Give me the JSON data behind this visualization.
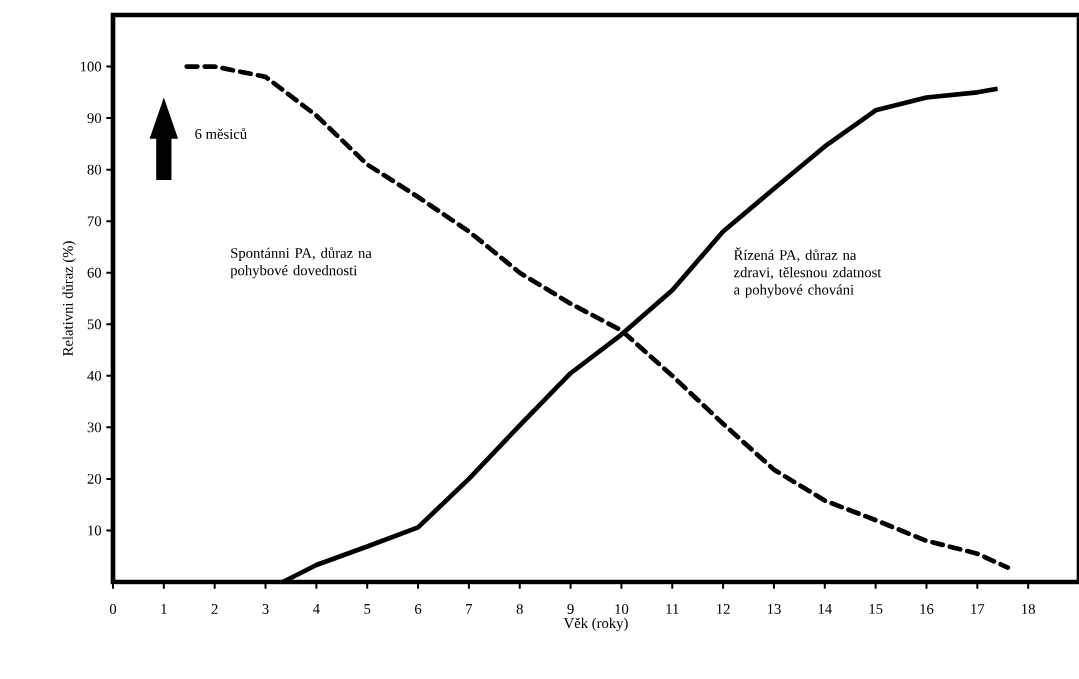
{
  "chart_data": {
    "type": "line",
    "xlabel": "Věk (roky)",
    "ylabel": "Relativni důraz (%)",
    "xlim": [
      0,
      19
    ],
    "ylim": [
      0,
      110
    ],
    "xticks": [
      0,
      1,
      2,
      3,
      4,
      5,
      6,
      7,
      8,
      9,
      10,
      11,
      12,
      13,
      14,
      15,
      16,
      17,
      18
    ],
    "yticks": [
      10,
      20,
      30,
      40,
      50,
      60,
      70,
      80,
      90,
      100
    ],
    "grid": false,
    "marker": "none",
    "annotations": [
      "6 měsiců",
      "Spontánni PA, důraz na pohybové dovednosti",
      "Řízená PA, důraz na zdravi, tělesnou zdatnost a pohybové chováni"
    ],
    "series": [
      {
        "color": "#000000",
        "line_style": "dashed",
        "x": [
          1.45,
          2,
          3,
          4,
          5,
          6,
          7,
          8,
          9,
          10,
          11,
          12,
          13,
          14,
          15,
          16,
          17,
          17.6
        ],
        "values": [
          100,
          100,
          98,
          90.5,
          81,
          74.7,
          68,
          60,
          54,
          48.8,
          40,
          30.7,
          21.8,
          15.8,
          12,
          8,
          5.5,
          2.8
        ]
      },
      {
        "color": "#000000",
        "line_style": "solid",
        "x": [
          3.34,
          4,
          5,
          6,
          7,
          8,
          9,
          10,
          11,
          12,
          13,
          14,
          15,
          16,
          17,
          17.4
        ],
        "values": [
          0,
          3.3,
          6.9,
          10.6,
          20,
          30.4,
          40.5,
          48,
          56.6,
          68,
          76.3,
          84.5,
          91.5,
          94,
          95,
          95.7
        ]
      }
    ]
  }
}
